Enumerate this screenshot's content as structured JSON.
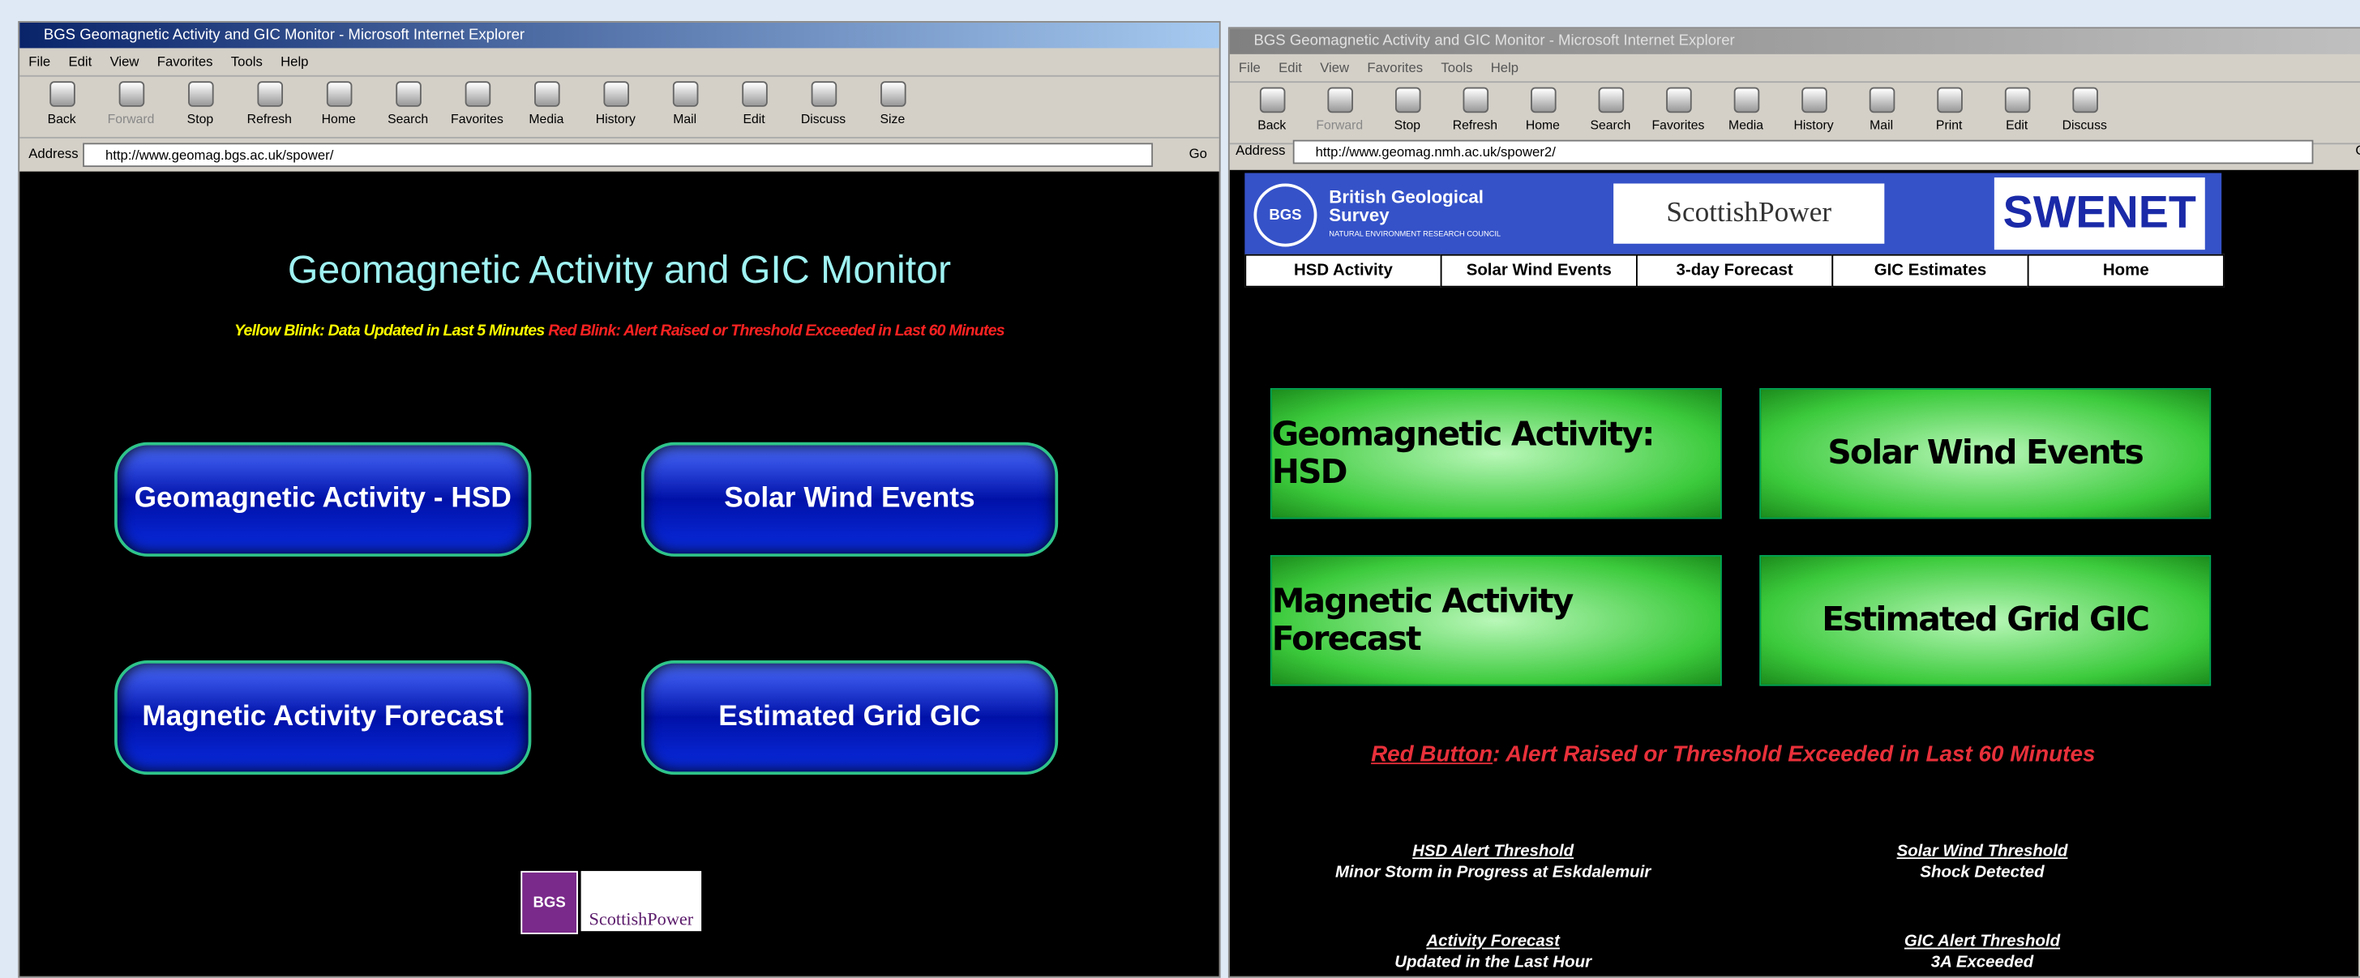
{
  "windows": [
    {
      "title": "BGS Geomagnetic Activity and GIC Monitor - Microsoft Internet Explorer",
      "menu": [
        "File",
        "Edit",
        "View",
        "Favorites",
        "Tools",
        "Help"
      ],
      "toolbar": [
        "Back",
        "Forward",
        "Stop",
        "Refresh",
        "Home",
        "Search",
        "Favorites",
        "Media",
        "History",
        "Mail",
        "Edit",
        "Discuss",
        "Size"
      ],
      "address_label": "Address",
      "url": "http://www.geomag.bgs.ac.uk/spower/",
      "go": "Go",
      "page": {
        "heading": "Geomagnetic Activity and GIC Monitor",
        "notice_yellow": "Yellow Blink: Data Updated in Last 5 Minutes",
        "notice_red": "Red Blink: Alert Raised or Threshold Exceeded in Last 60 Minutes",
        "buttons": [
          "Geomagnetic Activity - HSD",
          "Solar Wind Events",
          "Magnetic Activity Forecast",
          "Estimated Grid GIC"
        ],
        "logos": [
          "BGS",
          "ScottishPower"
        ]
      }
    },
    {
      "title": "BGS Geomagnetic Activity and GIC Monitor - Microsoft Internet Explorer",
      "menu": [
        "File",
        "Edit",
        "View",
        "Favorites",
        "Tools",
        "Help"
      ],
      "toolbar": [
        "Back",
        "Forward",
        "Stop",
        "Refresh",
        "Home",
        "Search",
        "Favorites",
        "Media",
        "History",
        "Mail",
        "Print",
        "Edit",
        "Discuss"
      ],
      "address_label": "Address",
      "url": "http://www.geomag.nmh.ac.uk/spower2/",
      "go": "Go",
      "page": {
        "banner": {
          "bgs_name": "British Geological Survey",
          "bgs_sub": "NATURAL ENVIRONMENT RESEARCH COUNCIL",
          "bgs_logo": "BGS",
          "sp": "ScottishPower",
          "swenet": "SWENET"
        },
        "nav": [
          "HSD Activity",
          "Solar Wind Events",
          "3-day Forecast",
          "GIC Estimates",
          "Home"
        ],
        "buttons": [
          "Geomagnetic Activity: HSD",
          "Solar Wind Events",
          "Magnetic Activity Forecast",
          "Estimated Grid GIC"
        ],
        "alert": {
          "link": "Red Button",
          "text": ": Alert Raised or Threshold Exceeded in Last 60 Minutes"
        },
        "thresholds": [
          {
            "title": "HSD Alert Threshold",
            "detail": "Minor Storm in Progress at Eskdalemuir"
          },
          {
            "title": "Solar Wind Threshold",
            "detail": "Shock Detected"
          },
          {
            "title": "Activity Forecast",
            "detail": "Updated in the Last Hour"
          },
          {
            "title": "GIC Alert Threshold",
            "detail": "3A Exceeded"
          }
        ]
      }
    }
  ]
}
